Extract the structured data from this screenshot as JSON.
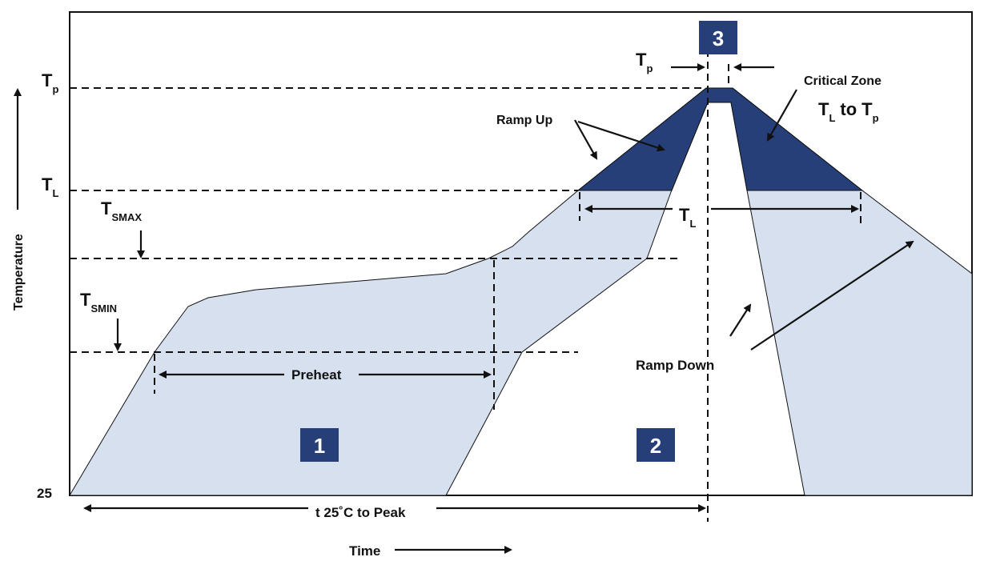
{
  "colors": {
    "light_fill": "#d6e0ef",
    "dark_fill": "#263f78",
    "badge": "#263f78",
    "line": "#111111"
  },
  "y_labels": {
    "tp_main": "T",
    "tp_sub": "p",
    "tl_main": "T",
    "tl_sub": "L",
    "tsmax_main": "T",
    "tsmax_sub": "SMAX",
    "tsmin_main": "T",
    "tsmin_sub": "SMIN",
    "base": "25"
  },
  "axis": {
    "y_label": "Temperature",
    "x_label": "Time"
  },
  "annotations": {
    "ramp_up": "Ramp Up",
    "ramp_down": "Ramp Down",
    "critical_zone": "Critical Zone",
    "critical_range_t1": "T",
    "critical_range_s1": "L",
    "critical_range_to": "to",
    "critical_range_t2": "T",
    "critical_range_s2": "p",
    "tp_top_main": "T",
    "tp_top_sub": "p",
    "tl_span_main": "T",
    "tl_span_sub": "L",
    "preheat": "Preheat",
    "t25_to_peak": "t 25˚C to Peak"
  },
  "badges": [
    "1",
    "2",
    "3"
  ]
}
